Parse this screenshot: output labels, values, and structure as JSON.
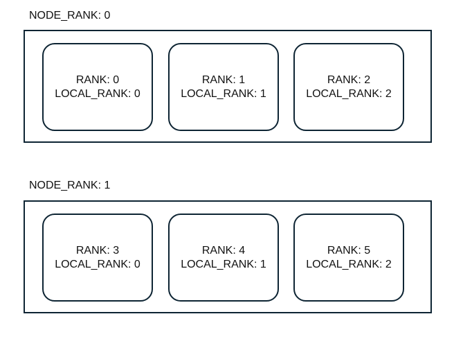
{
  "nodes": [
    {
      "label": "NODE_RANK: 0",
      "ranks": [
        {
          "rank": "RANK: 0",
          "local_rank": "LOCAL_RANK: 0"
        },
        {
          "rank": "RANK: 1",
          "local_rank": "LOCAL_RANK: 1"
        },
        {
          "rank": "RANK: 2",
          "local_rank": "LOCAL_RANK: 2"
        }
      ]
    },
    {
      "label": "NODE_RANK: 1",
      "ranks": [
        {
          "rank": "RANK: 3",
          "local_rank": "LOCAL_RANK: 0"
        },
        {
          "rank": "RANK: 4",
          "local_rank": "LOCAL_RANK: 1"
        },
        {
          "rank": "RANK: 5",
          "local_rank": "LOCAL_RANK: 2"
        }
      ]
    }
  ],
  "colors": {
    "border": "#0d2433",
    "text": "#111111",
    "background": "#ffffff"
  }
}
